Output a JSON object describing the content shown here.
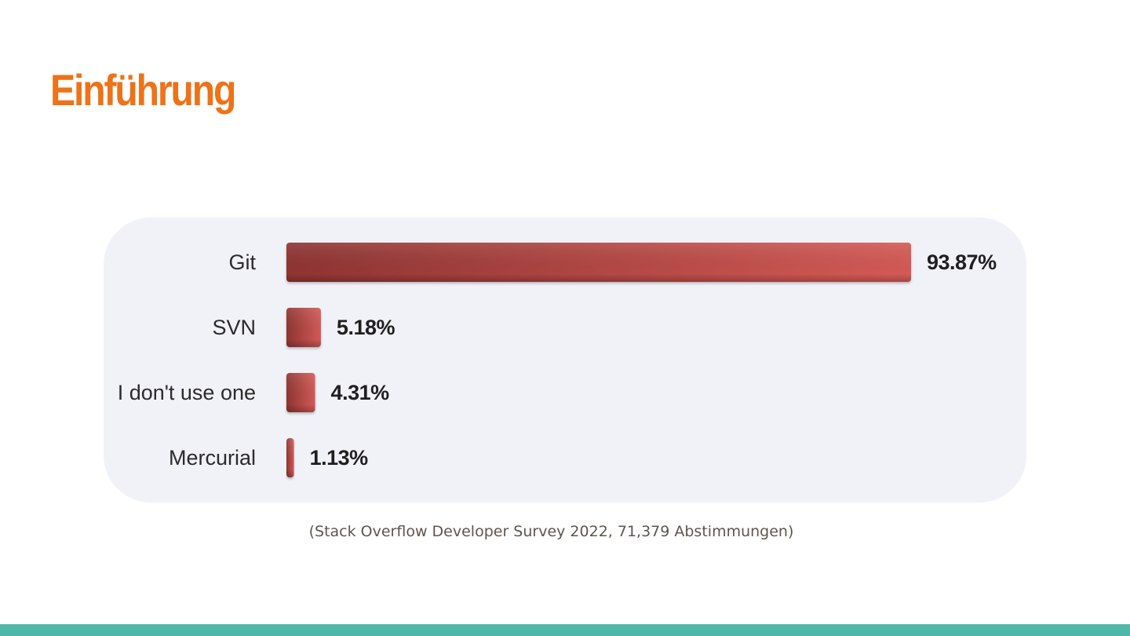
{
  "slide": {
    "title": "Einführung",
    "caption": "(Stack Overflow Developer Survey 2022, 71,379 Abstimmungen)"
  },
  "colors": {
    "title": "#ee7218",
    "bar_dark": "#8e3432",
    "bar_light": "#d45a55",
    "panel_background": "#f1f2f8",
    "footer_bar": "#4fb6aa"
  },
  "chart_data": {
    "type": "bar",
    "orientation": "horizontal",
    "categories": [
      "Git",
      "SVN",
      "I don't use one",
      "Mercurial"
    ],
    "values": [
      93.87,
      5.18,
      4.31,
      1.13
    ],
    "value_labels": [
      "93.87%",
      "5.18%",
      "4.31%",
      "1.13%"
    ],
    "unit": "%",
    "xlim": [
      0,
      93.87
    ],
    "grid": false,
    "legend": "none"
  }
}
